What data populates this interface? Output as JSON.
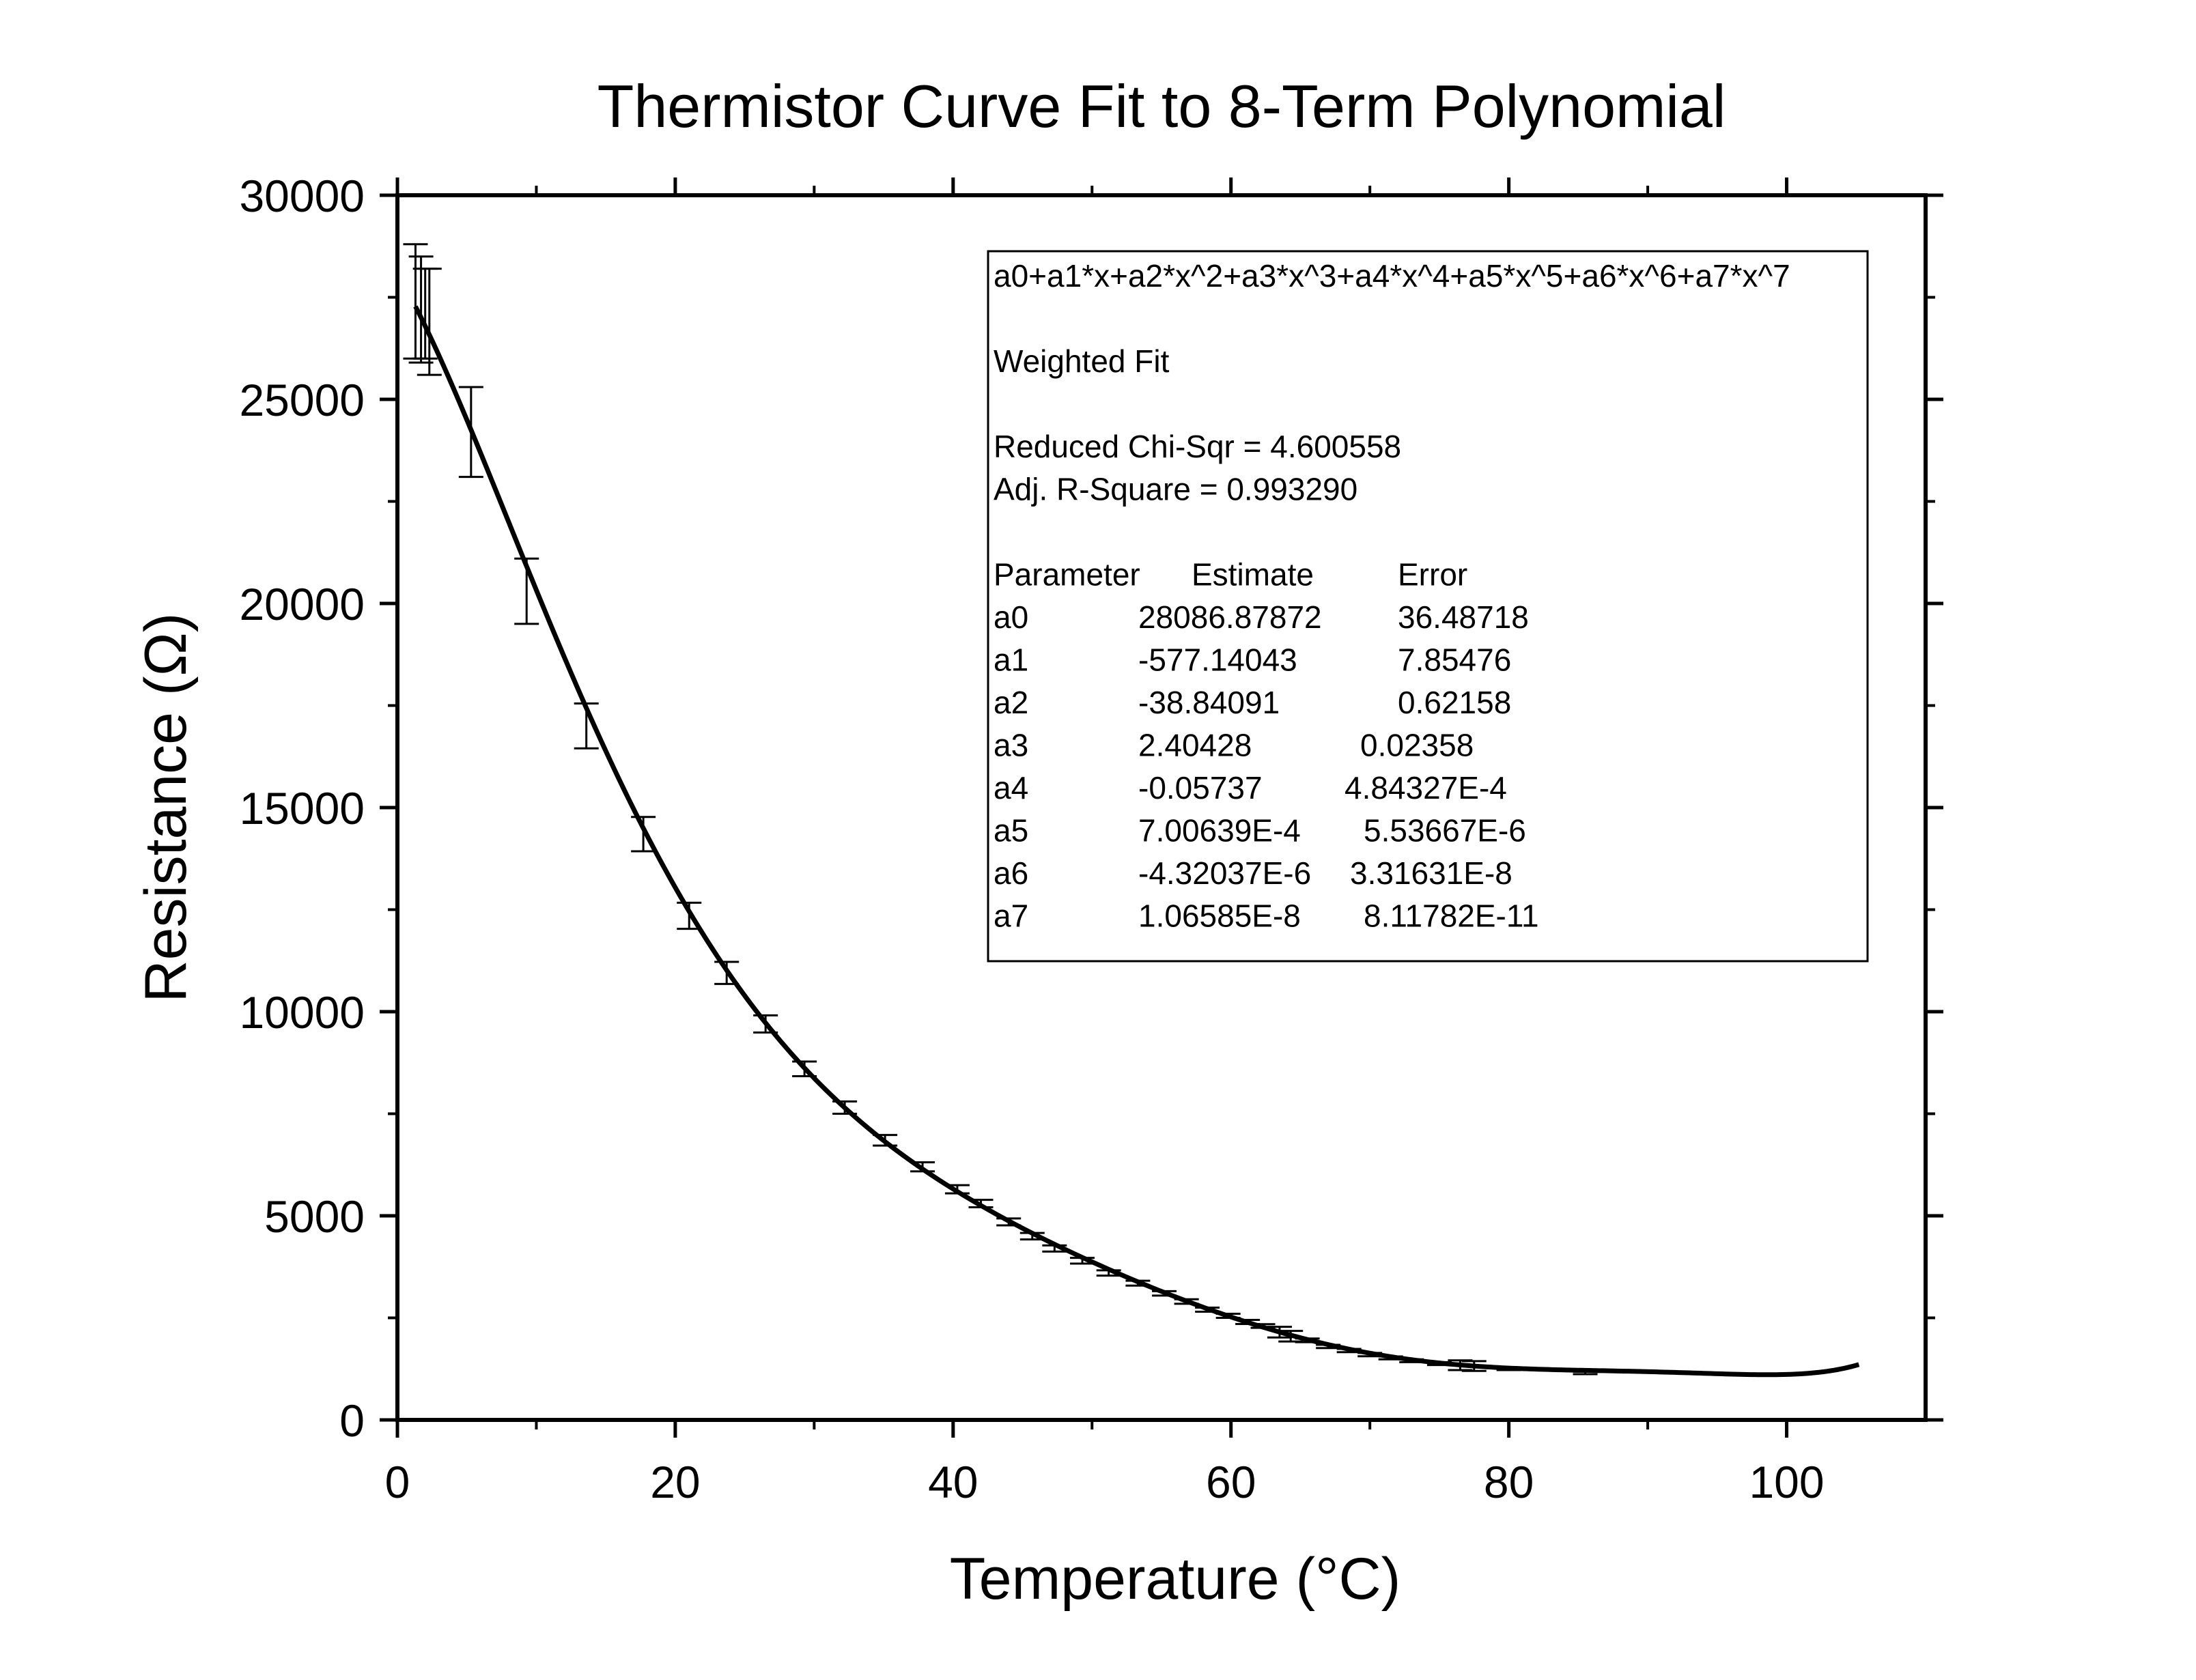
{
  "chart_data": {
    "type": "scatter",
    "title": "Thermistor Curve Fit to 8-Term Polynomial",
    "xlabel": "Temperature (°C)",
    "ylabel": "Resistance (Ω)",
    "xlim": [
      0,
      110
    ],
    "ylim": [
      0,
      30000
    ],
    "x_ticks": [
      0,
      20,
      40,
      60,
      80,
      100
    ],
    "y_ticks": [
      0,
      5000,
      10000,
      15000,
      20000,
      25000,
      30000
    ],
    "x_tick_labels": [
      "0",
      "20",
      "40",
      "60",
      "80",
      "100"
    ],
    "y_tick_labels": [
      "0",
      "5000",
      "10000",
      "15000",
      "20000",
      "25000",
      "30000"
    ],
    "grid": false,
    "series": [
      {
        "kind": "data-with-error-bars",
        "points": [
          {
            "x": 1.3,
            "y": 27400,
            "err": 1400
          },
          {
            "x": 1.7,
            "y": 27200,
            "err": 1300
          },
          {
            "x": 2.0,
            "y": 27100,
            "err": 1100
          },
          {
            "x": 2.3,
            "y": 26900,
            "err": 1300
          },
          {
            "x": 5.3,
            "y": 24200,
            "err": 1100
          },
          {
            "x": 9.3,
            "y": 20300,
            "err": 800
          },
          {
            "x": 13.6,
            "y": 17000,
            "err": 550
          },
          {
            "x": 17.7,
            "y": 14350,
            "err": 420
          },
          {
            "x": 21.0,
            "y": 12350,
            "err": 320
          },
          {
            "x": 23.7,
            "y": 10950,
            "err": 270
          },
          {
            "x": 26.5,
            "y": 9700,
            "err": 210
          },
          {
            "x": 29.3,
            "y": 8600,
            "err": 180
          },
          {
            "x": 32.2,
            "y": 7650,
            "err": 150
          },
          {
            "x": 35.1,
            "y": 6850,
            "err": 130
          },
          {
            "x": 37.8,
            "y": 6200,
            "err": 110
          },
          {
            "x": 40.3,
            "y": 5650,
            "err": 100
          },
          {
            "x": 42.0,
            "y": 5300,
            "err": 90
          },
          {
            "x": 44.0,
            "y": 4850,
            "err": 85
          },
          {
            "x": 45.7,
            "y": 4500,
            "err": 80
          },
          {
            "x": 47.3,
            "y": 4200,
            "err": 75
          },
          {
            "x": 49.3,
            "y": 3900,
            "err": 70
          },
          {
            "x": 51.2,
            "y": 3600,
            "err": 65
          },
          {
            "x": 53.3,
            "y": 3350,
            "err": 60
          },
          {
            "x": 55.2,
            "y": 3100,
            "err": 55
          },
          {
            "x": 56.8,
            "y": 2900,
            "err": 55
          },
          {
            "x": 58.3,
            "y": 2700,
            "err": 50
          },
          {
            "x": 59.8,
            "y": 2550,
            "err": 50
          },
          {
            "x": 61.2,
            "y": 2400,
            "err": 50
          },
          {
            "x": 62.3,
            "y": 2300,
            "err": 45
          },
          {
            "x": 63.5,
            "y": 2150,
            "err": 130
          },
          {
            "x": 64.3,
            "y": 2050,
            "err": 130
          },
          {
            "x": 65.5,
            "y": 1950,
            "err": 45
          },
          {
            "x": 67.0,
            "y": 1800,
            "err": 40
          },
          {
            "x": 68.5,
            "y": 1700,
            "err": 40
          },
          {
            "x": 70.0,
            "y": 1600,
            "err": 40
          },
          {
            "x": 71.5,
            "y": 1520,
            "err": 35
          },
          {
            "x": 73.0,
            "y": 1450,
            "err": 35
          },
          {
            "x": 75.0,
            "y": 1380,
            "err": 35
          },
          {
            "x": 76.5,
            "y": 1340,
            "err": 120
          },
          {
            "x": 77.5,
            "y": 1320,
            "err": 120
          },
          {
            "x": 80.0,
            "y": 1250,
            "err": 30
          },
          {
            "x": 85.5,
            "y": 1150,
            "err": 30
          }
        ]
      },
      {
        "kind": "polynomial-fit",
        "x_range": [
          1.3,
          105.2
        ],
        "coefficients": [
          28086.87872,
          -577.14043,
          -38.84091,
          2.40428,
          -0.05737,
          0.000700639,
          -4.32037e-06,
          1.06585e-08
        ]
      }
    ],
    "info_box": {
      "position": "top-right",
      "lines": [
        "a0+a1*x+a2*x^2+a3*x^3+a4*x^4+a5*x^5+a6*x^6+a7*x^7",
        "",
        "Weighted Fit",
        "",
        "Reduced Chi-Sqr = 4.600558",
        "Adj. R-Square   = 0.993290",
        ""
      ],
      "table_header": [
        "Parameter",
        "Estimate",
        "Error"
      ],
      "table_rows": [
        [
          "a0",
          "28086.87872",
          "36.48718"
        ],
        [
          "a1",
          "-577.14043",
          "7.85476"
        ],
        [
          "a2",
          "-38.84091",
          "0.62158"
        ],
        [
          "a3",
          "2.40428",
          "0.02358"
        ],
        [
          "a4",
          "-0.05737",
          "4.84327E-4"
        ],
        [
          "a5",
          "7.00639E-4",
          "5.53667E-6"
        ],
        [
          "a6",
          "-4.32037E-6",
          "3.31631E-8"
        ],
        [
          "a7",
          "1.06585E-8",
          "8.11782E-11"
        ]
      ]
    }
  }
}
